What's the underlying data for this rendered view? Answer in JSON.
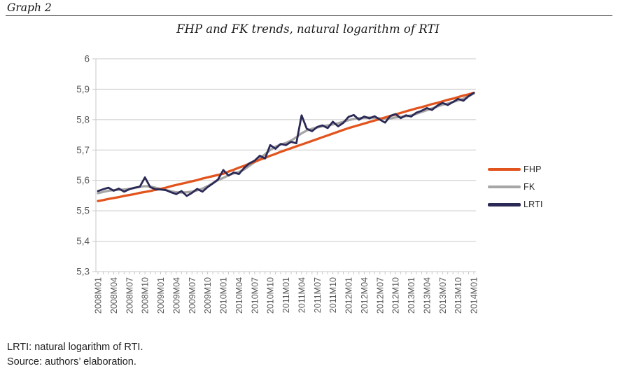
{
  "page": {
    "graph_label": "Graph 2",
    "footer_line1": "LRTI: natural logarithm of RTI.",
    "footer_line2": "Source: authors’ elaboration."
  },
  "colors": {
    "grid": "#C8C8C8",
    "axis_text": "#595959",
    "rule": "#3F3F3F",
    "fhp": "#E2541D",
    "fk": "#A6A6A6",
    "lrti": "#2B2956"
  },
  "chart_data": {
    "type": "line",
    "title": "FHP and FK trends, natural logarithm of RTI",
    "xlabel": "",
    "ylabel": "",
    "ylim": [
      5.3,
      6.0
    ],
    "grid": "horizontal",
    "legend_position": "right",
    "decimal_separator": ",",
    "y_ticks": [
      {
        "label": "6",
        "value": 6.0
      },
      {
        "label": "5,9",
        "value": 5.9
      },
      {
        "label": "5,8",
        "value": 5.8
      },
      {
        "label": "5,7",
        "value": 5.7
      },
      {
        "label": "5,6",
        "value": 5.6
      },
      {
        "label": "5,5",
        "value": 5.5
      },
      {
        "label": "5,4",
        "value": 5.4
      },
      {
        "label": "5,3",
        "value": 5.3
      }
    ],
    "x_tick_labels": [
      "2008M01",
      "2008M04",
      "2008M07",
      "2008M10",
      "2009M01",
      "2009M04",
      "2009M07",
      "2009M10",
      "2010M01",
      "2010M04",
      "2010M07",
      "2010M10",
      "2011M01",
      "2011M04",
      "2011M07",
      "2011M10",
      "2012M01",
      "2012M04",
      "2012M07",
      "2012M10",
      "2013M01",
      "2013M04",
      "2013M07",
      "2013M10",
      "2014M01"
    ],
    "months": [
      "2008M01",
      "2008M02",
      "2008M03",
      "2008M04",
      "2008M05",
      "2008M06",
      "2008M07",
      "2008M08",
      "2008M09",
      "2008M10",
      "2008M11",
      "2008M12",
      "2009M01",
      "2009M02",
      "2009M03",
      "2009M04",
      "2009M05",
      "2009M06",
      "2009M07",
      "2009M08",
      "2009M09",
      "2009M10",
      "2009M11",
      "2009M12",
      "2010M01",
      "2010M02",
      "2010M03",
      "2010M04",
      "2010M05",
      "2010M06",
      "2010M07",
      "2010M08",
      "2010M09",
      "2010M10",
      "2010M11",
      "2010M12",
      "2011M01",
      "2011M02",
      "2011M03",
      "2011M04",
      "2011M05",
      "2011M06",
      "2011M07",
      "2011M08",
      "2011M09",
      "2011M10",
      "2011M11",
      "2011M12",
      "2012M01",
      "2012M02",
      "2012M03",
      "2012M04",
      "2012M05",
      "2012M06",
      "2012M07",
      "2012M08",
      "2012M09",
      "2012M10",
      "2012M11",
      "2012M12",
      "2013M01",
      "2013M02",
      "2013M03",
      "2013M04",
      "2013M05",
      "2013M06",
      "2013M07",
      "2013M08",
      "2013M09",
      "2013M10",
      "2013M11",
      "2013M12",
      "2014M01"
    ],
    "series": [
      {
        "name": "FHP",
        "color": "#E2541D",
        "values": [
          5.532,
          5.535,
          5.539,
          5.542,
          5.545,
          5.549,
          5.552,
          5.555,
          5.559,
          5.562,
          5.565,
          5.569,
          5.572,
          5.576,
          5.581,
          5.585,
          5.589,
          5.593,
          5.597,
          5.601,
          5.606,
          5.61,
          5.614,
          5.618,
          5.622,
          5.629,
          5.635,
          5.642,
          5.648,
          5.655,
          5.661,
          5.668,
          5.674,
          5.681,
          5.687,
          5.694,
          5.7,
          5.706,
          5.712,
          5.718,
          5.724,
          5.73,
          5.736,
          5.742,
          5.748,
          5.754,
          5.76,
          5.766,
          5.772,
          5.777,
          5.782,
          5.787,
          5.792,
          5.797,
          5.802,
          5.807,
          5.812,
          5.817,
          5.822,
          5.827,
          5.832,
          5.837,
          5.841,
          5.846,
          5.851,
          5.855,
          5.86,
          5.865,
          5.869,
          5.874,
          5.879,
          5.883,
          5.888
        ]
      },
      {
        "name": "FK",
        "color": "#A6A6A6",
        "values": [
          5.558,
          5.562,
          5.566,
          5.568,
          5.569,
          5.57,
          5.572,
          5.575,
          5.579,
          5.581,
          5.58,
          5.576,
          5.572,
          5.568,
          5.564,
          5.561,
          5.56,
          5.561,
          5.563,
          5.567,
          5.573,
          5.581,
          5.591,
          5.601,
          5.608,
          5.617,
          5.623,
          5.628,
          5.636,
          5.648,
          5.66,
          5.673,
          5.686,
          5.7,
          5.711,
          5.718,
          5.723,
          5.731,
          5.742,
          5.755,
          5.764,
          5.77,
          5.774,
          5.778,
          5.781,
          5.784,
          5.788,
          5.793,
          5.798,
          5.802,
          5.805,
          5.806,
          5.807,
          5.806,
          5.804,
          5.803,
          5.804,
          5.807,
          5.809,
          5.811,
          5.814,
          5.819,
          5.825,
          5.831,
          5.837,
          5.843,
          5.849,
          5.853,
          5.858,
          5.863,
          5.869,
          5.877,
          5.886
        ]
      },
      {
        "name": "LRTI",
        "color": "#2B2956",
        "values": [
          5.565,
          5.571,
          5.576,
          5.566,
          5.573,
          5.563,
          5.571,
          5.576,
          5.579,
          5.61,
          5.578,
          5.571,
          5.57,
          5.568,
          5.561,
          5.555,
          5.565,
          5.549,
          5.559,
          5.572,
          5.563,
          5.578,
          5.59,
          5.603,
          5.634,
          5.616,
          5.626,
          5.621,
          5.641,
          5.656,
          5.665,
          5.681,
          5.672,
          5.716,
          5.704,
          5.72,
          5.716,
          5.727,
          5.722,
          5.814,
          5.77,
          5.762,
          5.776,
          5.781,
          5.772,
          5.793,
          5.778,
          5.789,
          5.809,
          5.815,
          5.8,
          5.81,
          5.804,
          5.811,
          5.8,
          5.79,
          5.812,
          5.818,
          5.805,
          5.814,
          5.81,
          5.823,
          5.829,
          5.838,
          5.832,
          5.846,
          5.855,
          5.848,
          5.858,
          5.868,
          5.862,
          5.877,
          5.888
        ]
      }
    ]
  }
}
